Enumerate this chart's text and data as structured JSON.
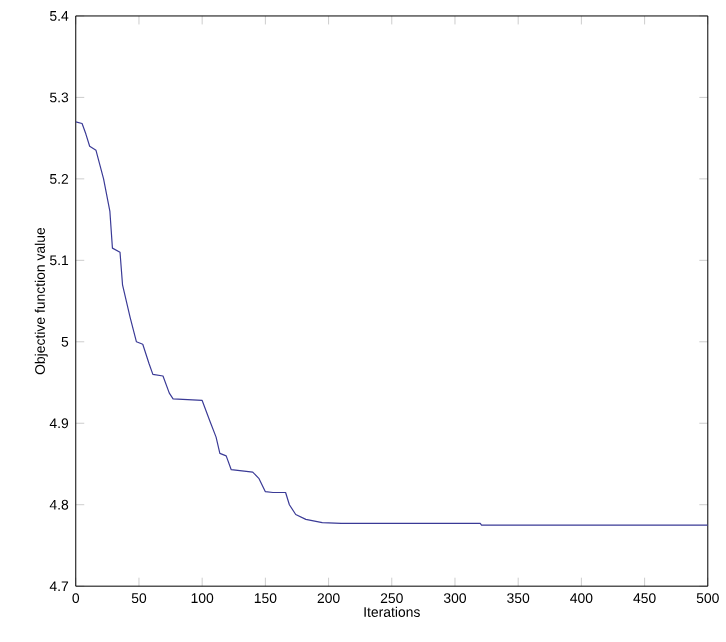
{
  "chart_data": {
    "type": "line",
    "xlabel": "Iterations",
    "ylabel": "Objective function value",
    "xlim": [
      0,
      500
    ],
    "ylim": [
      4.7,
      5.4
    ],
    "xticks": [
      0,
      50,
      100,
      150,
      200,
      250,
      300,
      350,
      400,
      450,
      500
    ],
    "yticks": [
      4.7,
      4.8,
      4.9,
      {
        "value": 5,
        "label": "5"
      },
      5.1,
      5.2,
      5.3,
      5.4
    ],
    "grid": false,
    "series": [
      {
        "color": "#3a3a96",
        "x": [
          0,
          5,
          8,
          11,
          16,
          22,
          27,
          29,
          35,
          37,
          43,
          48,
          53,
          58,
          61,
          69,
          74,
          77,
          100,
          106,
          111,
          114,
          119,
          123,
          140,
          145,
          150,
          156,
          166,
          169,
          174,
          182,
          195,
          210,
          320,
          321,
          500
        ],
        "values": [
          5.27,
          5.268,
          5.255,
          5.24,
          5.235,
          5.2,
          5.16,
          5.115,
          5.11,
          5.07,
          5.03,
          5.0,
          4.997,
          4.973,
          4.96,
          4.958,
          4.937,
          4.93,
          4.928,
          4.903,
          4.883,
          4.863,
          4.86,
          4.843,
          4.84,
          4.832,
          4.816,
          4.815,
          4.815,
          4.8,
          4.788,
          4.782,
          4.778,
          4.777,
          4.777,
          4.775,
          4.775
        ]
      }
    ]
  }
}
